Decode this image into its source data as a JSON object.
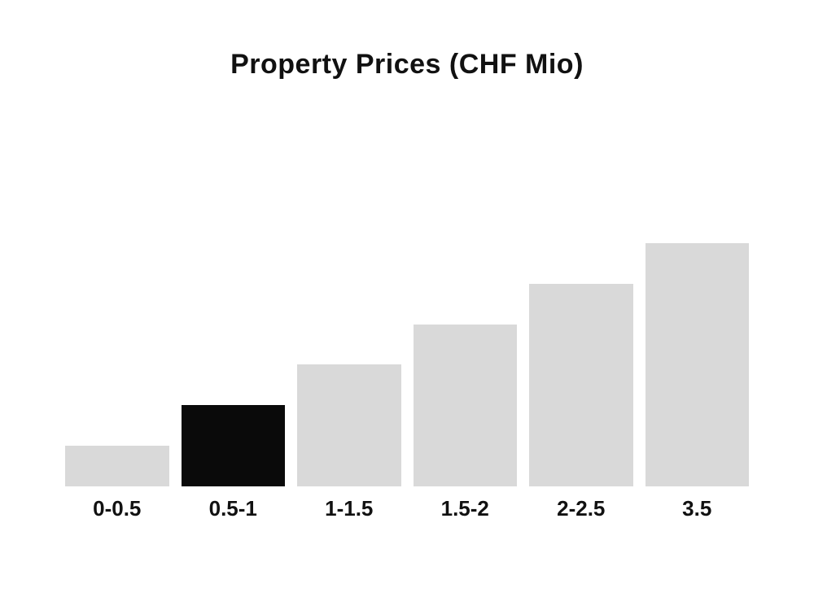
{
  "chart_data": {
    "type": "bar",
    "title": "Property Prices (CHF Mio)",
    "categories": [
      "0-0.5",
      "0.5-1",
      "1-1.5",
      "1.5-2",
      "2-2.5",
      "3.5"
    ],
    "values": [
      1,
      2,
      3,
      4,
      5,
      6
    ],
    "units": "relative height (no y-axis shown)",
    "highlighted_index": 1,
    "xlabel": "",
    "ylabel": "",
    "ylim": [
      0,
      6
    ],
    "grid": false,
    "legend": false,
    "axes_visible": false,
    "colors": {
      "bar_default": "#d9d9d9",
      "bar_highlighted": "#0a0a0a",
      "text": "#111111",
      "background": "#ffffff"
    }
  }
}
